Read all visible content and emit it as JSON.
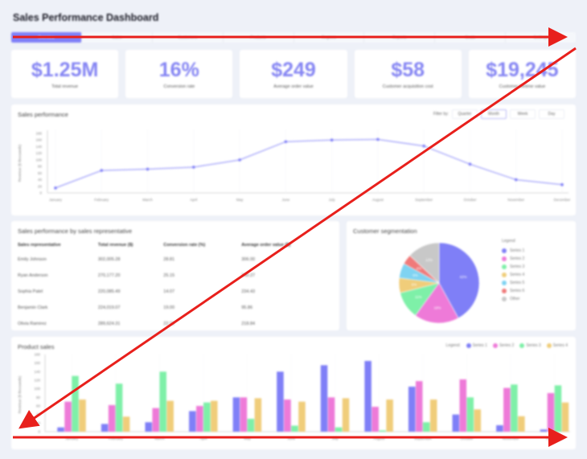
{
  "header": {
    "title": "Sales Performance Dashboard"
  },
  "tabs": [
    {
      "label": "Overview",
      "active": true
    },
    {
      "label": "Sales"
    },
    {
      "label": "Customers"
    },
    {
      "label": "Products"
    },
    {
      "label": "Regions"
    },
    {
      "label": "Reports"
    },
    {
      "label": "Goals"
    },
    {
      "label": "Settings"
    }
  ],
  "kpis": [
    {
      "value": "$1.25M",
      "label": "Total revenue"
    },
    {
      "value": "16%",
      "label": "Conversion rate"
    },
    {
      "value": "$249",
      "label": "Average order value"
    },
    {
      "value": "$58",
      "label": "Customer acquisition cost"
    },
    {
      "value": "$19,245",
      "label": "Customer lifetime value"
    }
  ],
  "sales_performance": {
    "title": "Sales performance",
    "filter_label": "Filter by:",
    "filters": [
      {
        "label": "Quarter"
      },
      {
        "label": "Month",
        "selected": true
      },
      {
        "label": "Week"
      },
      {
        "label": "Day"
      }
    ]
  },
  "rep_table": {
    "title": "Sales performance by sales representative",
    "columns": [
      "Sales representative",
      "Total revenue ($)",
      "Conversion rate (%)",
      "Average order value ($)"
    ],
    "rows": [
      [
        "Emily Johnson",
        "302,005.28",
        "28.81",
        "306.00"
      ],
      [
        "Ryan Anderson",
        "270,177.20",
        "25.15",
        "240.27"
      ],
      [
        "Sophia Patel",
        "220,085.49",
        "14.07",
        "234.43"
      ],
      [
        "Benjamin Clark",
        "224,019.07",
        "19.00",
        "95.86"
      ],
      [
        "Olivia Ramirez",
        "289,624.31",
        "22.22",
        "218.84"
      ]
    ]
  },
  "segmentation": {
    "title": "Customer segmentation",
    "legend_title": "Legend"
  },
  "product_sales": {
    "title": "Product sales",
    "legend_title": "Legend:"
  },
  "colors": {
    "accent": "#7f7ff7",
    "series1": "#7f7ff7",
    "series2": "#ee7ad8",
    "series3": "#7ef0a8",
    "series4": "#f0cd7a",
    "series5": "#7fd3f2",
    "series6": "#f07a7a",
    "other": "#c8c8c8",
    "annotation": "#e8201c"
  },
  "chart_data": [
    {
      "type": "line",
      "title": "Sales performance",
      "xlabel": "",
      "ylabel": "Revenue ($ thousands)",
      "categories": [
        "January",
        "February",
        "March",
        "April",
        "May",
        "June",
        "July",
        "August",
        "September",
        "October",
        "November",
        "December"
      ],
      "values": [
        15,
        68,
        72,
        78,
        100,
        155,
        160,
        162,
        142,
        87,
        40,
        25
      ],
      "ylim": [
        0,
        180
      ],
      "yticks": [
        0,
        20,
        40,
        60,
        80,
        100,
        120,
        140,
        160,
        180
      ],
      "grid": "vertical dotted"
    },
    {
      "type": "pie",
      "title": "Customer segmentation",
      "labels": [
        "Series 1",
        "Series 2",
        "Series 3",
        "Series 4",
        "Series 5",
        "Series 6",
        "Other"
      ],
      "values": [
        42,
        18,
        11,
        6,
        6,
        4,
        13
      ],
      "legend_position": "right"
    },
    {
      "type": "bar",
      "title": "Product sales",
      "ylabel": "Revenue ($ thousands)",
      "categories": [
        "January",
        "February",
        "March",
        "April",
        "May",
        "June",
        "July",
        "August",
        "September",
        "October",
        "November",
        "December"
      ],
      "series": [
        {
          "name": "Series 1",
          "values": [
            10,
            18,
            22,
            48,
            80,
            140,
            155,
            165,
            105,
            40,
            15,
            5
          ]
        },
        {
          "name": "Series 2",
          "values": [
            70,
            62,
            55,
            60,
            80,
            75,
            80,
            58,
            118,
            122,
            102,
            90
          ]
        },
        {
          "name": "Series 3",
          "values": [
            130,
            112,
            140,
            68,
            30,
            14,
            10,
            3,
            22,
            80,
            110,
            108
          ]
        },
        {
          "name": "Series 4",
          "values": [
            75,
            35,
            72,
            72,
            78,
            70,
            78,
            75,
            75,
            52,
            36,
            68
          ]
        }
      ],
      "ylim": [
        0,
        180
      ],
      "yticks": [
        0,
        20,
        40,
        60,
        80,
        100,
        120,
        140,
        160,
        180
      ],
      "legend_position": "top-right"
    }
  ]
}
